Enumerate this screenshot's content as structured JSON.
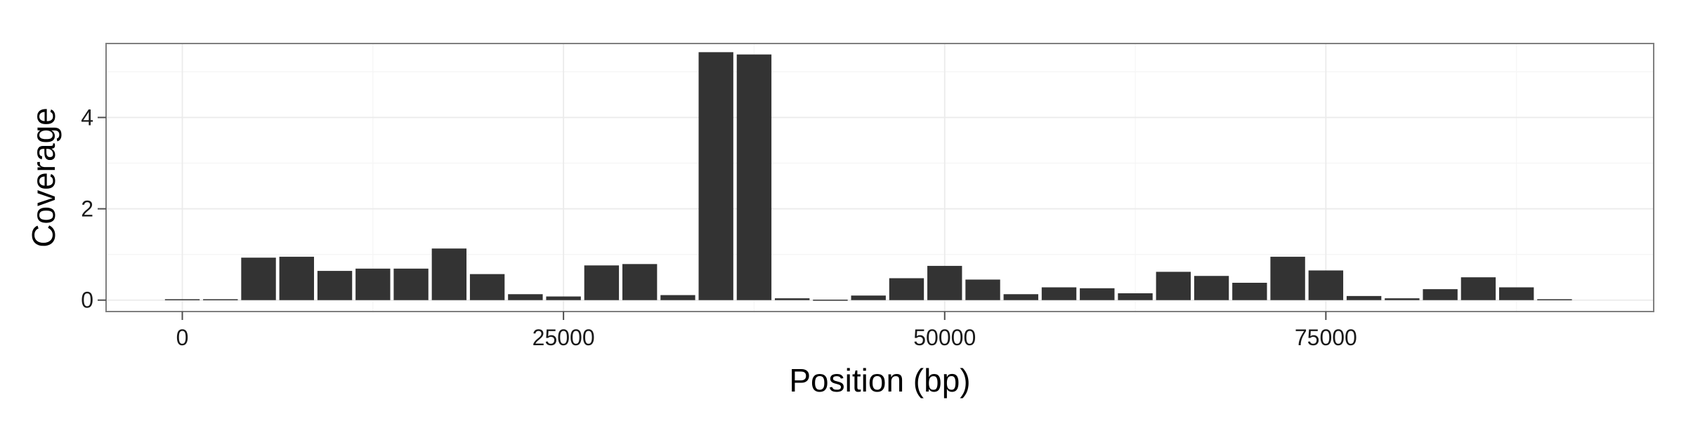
{
  "chart_data": {
    "type": "bar",
    "xlabel": "Position (bp)",
    "ylabel": "Coverage",
    "xlim": [
      -5000,
      96500
    ],
    "ylim": [
      -0.25,
      5.62
    ],
    "xticks": [
      0,
      25000,
      50000,
      75000
    ],
    "xtick_labels": [
      "0",
      "25000",
      "50000",
      "75000"
    ],
    "yticks": [
      0,
      2,
      4
    ],
    "ytick_labels": [
      "0",
      "2",
      "4"
    ],
    "bin_width": 2500,
    "x": [
      0,
      2500,
      5000,
      7500,
      10000,
      12500,
      15000,
      17500,
      20000,
      22500,
      25000,
      27500,
      30000,
      32500,
      35000,
      37500,
      40000,
      42500,
      45000,
      47500,
      50000,
      52500,
      55000,
      57500,
      60000,
      62500,
      65000,
      67500,
      70000,
      72500,
      75000,
      77500,
      80000,
      82500,
      85000,
      87500,
      90000
    ],
    "values": [
      0.02,
      0.02,
      0.93,
      0.95,
      0.64,
      0.69,
      0.69,
      1.13,
      0.57,
      0.13,
      0.08,
      0.76,
      0.79,
      0.11,
      5.43,
      5.38,
      0.04,
      0.01,
      0.1,
      0.48,
      0.75,
      0.45,
      0.13,
      0.28,
      0.26,
      0.15,
      0.62,
      0.53,
      0.38,
      0.95,
      0.65,
      0.09,
      0.04,
      0.24,
      0.5,
      0.28,
      0.02
    ],
    "colors": {
      "bar": "#333333",
      "panel_border": "#7f7f7f",
      "grid_major": "#ebebeb",
      "grid_minor": "#f5f5f5",
      "tick": "#4d4d4d"
    },
    "grid": true,
    "legend": "none"
  }
}
